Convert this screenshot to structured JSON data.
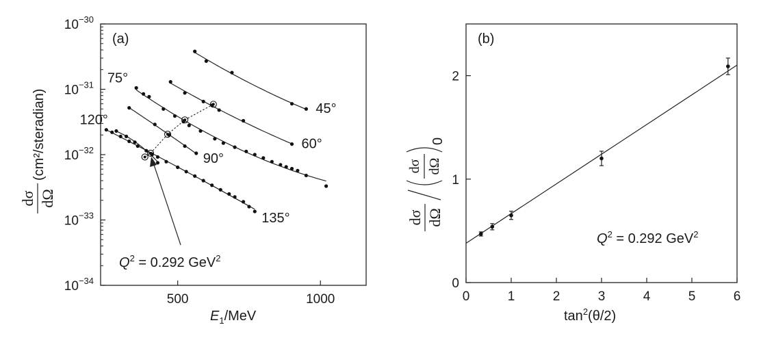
{
  "chart_data": [
    {
      "type": "scatter",
      "panel_label": "(a)",
      "xlabel": {
        "var": "E",
        "sub": "1",
        "unit": "/MeV"
      },
      "ylabel": {
        "units": "(cm²/steradian)"
      },
      "ylim": [
        1e-34,
        1e-30
      ],
      "xlim": [
        230,
        1160
      ],
      "log_y": true,
      "xticks": [
        500,
        1000
      ],
      "yticks": [
        {
          "value": 1e-30,
          "base": "10",
          "exp": "−30"
        },
        {
          "value": 1e-31,
          "base": "10",
          "exp": "−31"
        },
        {
          "value": 1e-32,
          "base": "10",
          "exp": "−32"
        },
        {
          "value": 1e-33,
          "base": "10",
          "exp": "−33"
        },
        {
          "value": 1e-34,
          "base": "10",
          "exp": "−34"
        }
      ],
      "grid": false,
      "annotation": {
        "var": "Q",
        "exp": "2",
        "rest": " = 0.292 GeV",
        "unit_exp": "2"
      },
      "series": [
        {
          "name": "45°",
          "x": [
            560,
            600,
            690,
            900,
            950
          ],
          "y": [
            3.8e-31,
            2.7e-31,
            1.8e-31,
            6e-32,
            5e-32
          ]
        },
        {
          "name": "60°",
          "x": [
            475,
            525,
            590,
            620,
            645,
            730,
            900
          ],
          "y": [
            1.3e-31,
            8.8e-32,
            6.5e-32,
            5.7e-32,
            4.8e-32,
            3.3e-32,
            1.45e-32
          ]
        },
        {
          "name": "75°",
          "x": [
            355,
            380,
            400,
            450,
            490,
            520,
            540,
            580,
            630,
            660,
            700,
            740,
            770,
            800,
            830,
            860,
            880,
            900,
            920,
            950,
            1020
          ],
          "y": [
            1.05e-31,
            8.5e-32,
            7.7e-32,
            5e-32,
            3.9e-32,
            3.2e-32,
            2.8e-32,
            2.3e-32,
            1.75e-32,
            1.5e-32,
            1.3e-32,
            1.12e-32,
            1e-32,
            8.9e-33,
            7.8e-33,
            7e-33,
            6.5e-33,
            6.1e-33,
            5.7e-33,
            4.8e-33,
            3.3e-33
          ]
        },
        {
          "name": "90°",
          "x": [
            330,
            420,
            470,
            525,
            565
          ],
          "y": [
            5.2e-32,
            2.9e-32,
            2e-32,
            1.35e-32,
            1.05e-32
          ]
        },
        {
          "name": "120°",
          "x": [
            285,
            320,
            350,
            410,
            430
          ],
          "y": [
            2.3e-32,
            1.9e-32,
            1.55e-32,
            1e-32,
            7.5e-33
          ]
        },
        {
          "name": "135°",
          "x": [
            250,
            270,
            300,
            330,
            360,
            390,
            410,
            430,
            460,
            500,
            530,
            560,
            590,
            620,
            650,
            680,
            700,
            730,
            750,
            770
          ],
          "y": [
            2.4e-32,
            2.2e-32,
            1.9e-32,
            1.6e-32,
            1.35e-32,
            1.15e-32,
            1.02e-32,
            9.2e-33,
            7.8e-33,
            6.4e-33,
            5.5e-33,
            4.7e-33,
            4e-33,
            3.4e-33,
            2.9e-33,
            2.5e-33,
            2.25e-33,
            1.9e-33,
            1.6e-33,
            1.35e-33
          ]
        }
      ],
      "constant_q2_points": {
        "x": [
          385,
          405,
          465,
          525,
          625
        ],
        "y": [
          9.2e-33,
          1.05e-32,
          2.05e-32,
          3.4e-32,
          5.9e-32
        ]
      }
    },
    {
      "type": "scatter",
      "panel_label": "(b)",
      "xlabel": {
        "fn": "tan",
        "sup": "2",
        "arg": "(θ/2)"
      },
      "xlim": [
        0,
        6
      ],
      "ylim": [
        0,
        2.5
      ],
      "xticks": [
        0,
        1,
        2,
        3,
        4,
        5,
        6
      ],
      "yticks": [
        0,
        1,
        2
      ],
      "grid": false,
      "annotation": {
        "var": "Q",
        "exp": "2",
        "rest": " = 0.292 GeV",
        "unit_exp": "2"
      },
      "x": [
        0.33,
        0.58,
        1.0,
        3.0,
        5.8
      ],
      "y": [
        0.47,
        0.54,
        0.65,
        1.2,
        2.09
      ],
      "yerr": [
        0.02,
        0.03,
        0.04,
        0.07,
        0.08
      ],
      "fit": {
        "intercept": 0.38,
        "slope": 0.287
      }
    }
  ]
}
